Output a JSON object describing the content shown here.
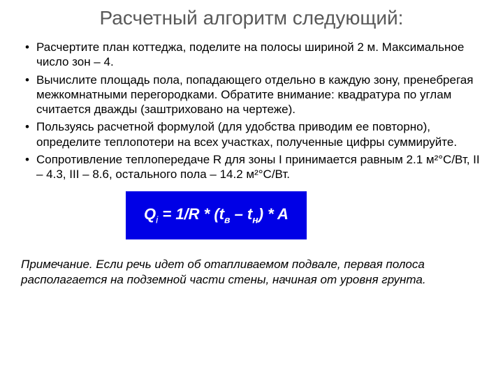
{
  "title": "Расчетный алгоритм следующий:",
  "bullets": [
    "Расчертите план коттеджа, поделите на полосы шириной 2 м. Максимальное число зон – 4.",
    "Вычислите площадь пола, попадающего отдельно в каждую зону, пренебрегая межкомнатными перегородками. Обратите внимание: квадратура по углам считается дважды (заштриховано на чертеже).",
    "Пользуясь расчетной формулой (для удобства приводим ее повторно), определите теплопотери на всех участках, полученные цифры суммируйте.",
    "Сопротивление теплопередаче R для зоны I принимается равным 2.1 м²°С/Вт, II – 4.3, III – 8.6, остального пола – 14.2 м²°С/Вт."
  ],
  "formula": {
    "Q": "Q",
    "i": "i",
    "eq": " = 1/R * (t",
    "sub1": "в",
    "mid": " – t",
    "sub2": "н",
    "end": ") * A"
  },
  "note": "Примечание. Если речь идет об отапливаемом подвале, первая полоса располагается на подземной части стены, начиная от уровня грунта.",
  "colors": {
    "background": "#ffffff",
    "title_color": "#595959",
    "text_color": "#000000",
    "formula_bg": "#0000e6",
    "formula_text": "#ffffff"
  },
  "typography": {
    "title_fontsize": 28,
    "body_fontsize": 17,
    "formula_fontsize": 22,
    "note_fontsize": 17
  }
}
